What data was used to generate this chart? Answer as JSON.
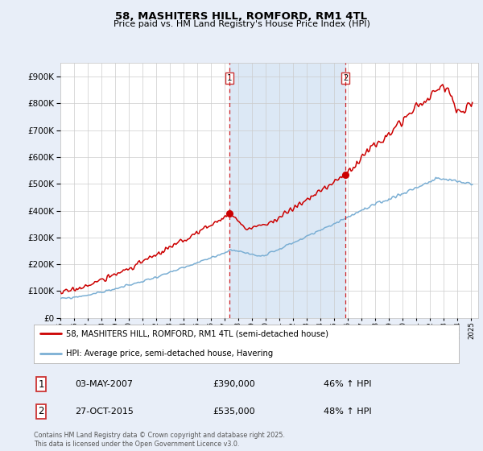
{
  "title": "58, MASHITERS HILL, ROMFORD, RM1 4TL",
  "subtitle": "Price paid vs. HM Land Registry's House Price Index (HPI)",
  "red_label": "58, MASHITERS HILL, ROMFORD, RM1 4TL (semi-detached house)",
  "blue_label": "HPI: Average price, semi-detached house, Havering",
  "legend1_date": "03-MAY-2007",
  "legend1_price": "£390,000",
  "legend1_hpi": "46% ↑ HPI",
  "legend2_date": "27-OCT-2015",
  "legend2_price": "£535,000",
  "legend2_hpi": "48% ↑ HPI",
  "footer": "Contains HM Land Registry data © Crown copyright and database right 2025.\nThis data is licensed under the Open Government Licence v3.0.",
  "red_color": "#cc0000",
  "blue_color": "#7bafd4",
  "background_color": "#e8eef8",
  "plot_bg_color": "#ffffff",
  "grid_color": "#cccccc",
  "shade_color": "#dce8f5",
  "ylim": [
    0,
    950000
  ],
  "yticks": [
    0,
    100000,
    200000,
    300000,
    400000,
    500000,
    600000,
    700000,
    800000,
    900000
  ],
  "point1_year": 2007.35,
  "point1_value": 390000,
  "point2_year": 2015.82,
  "point2_value": 535000
}
